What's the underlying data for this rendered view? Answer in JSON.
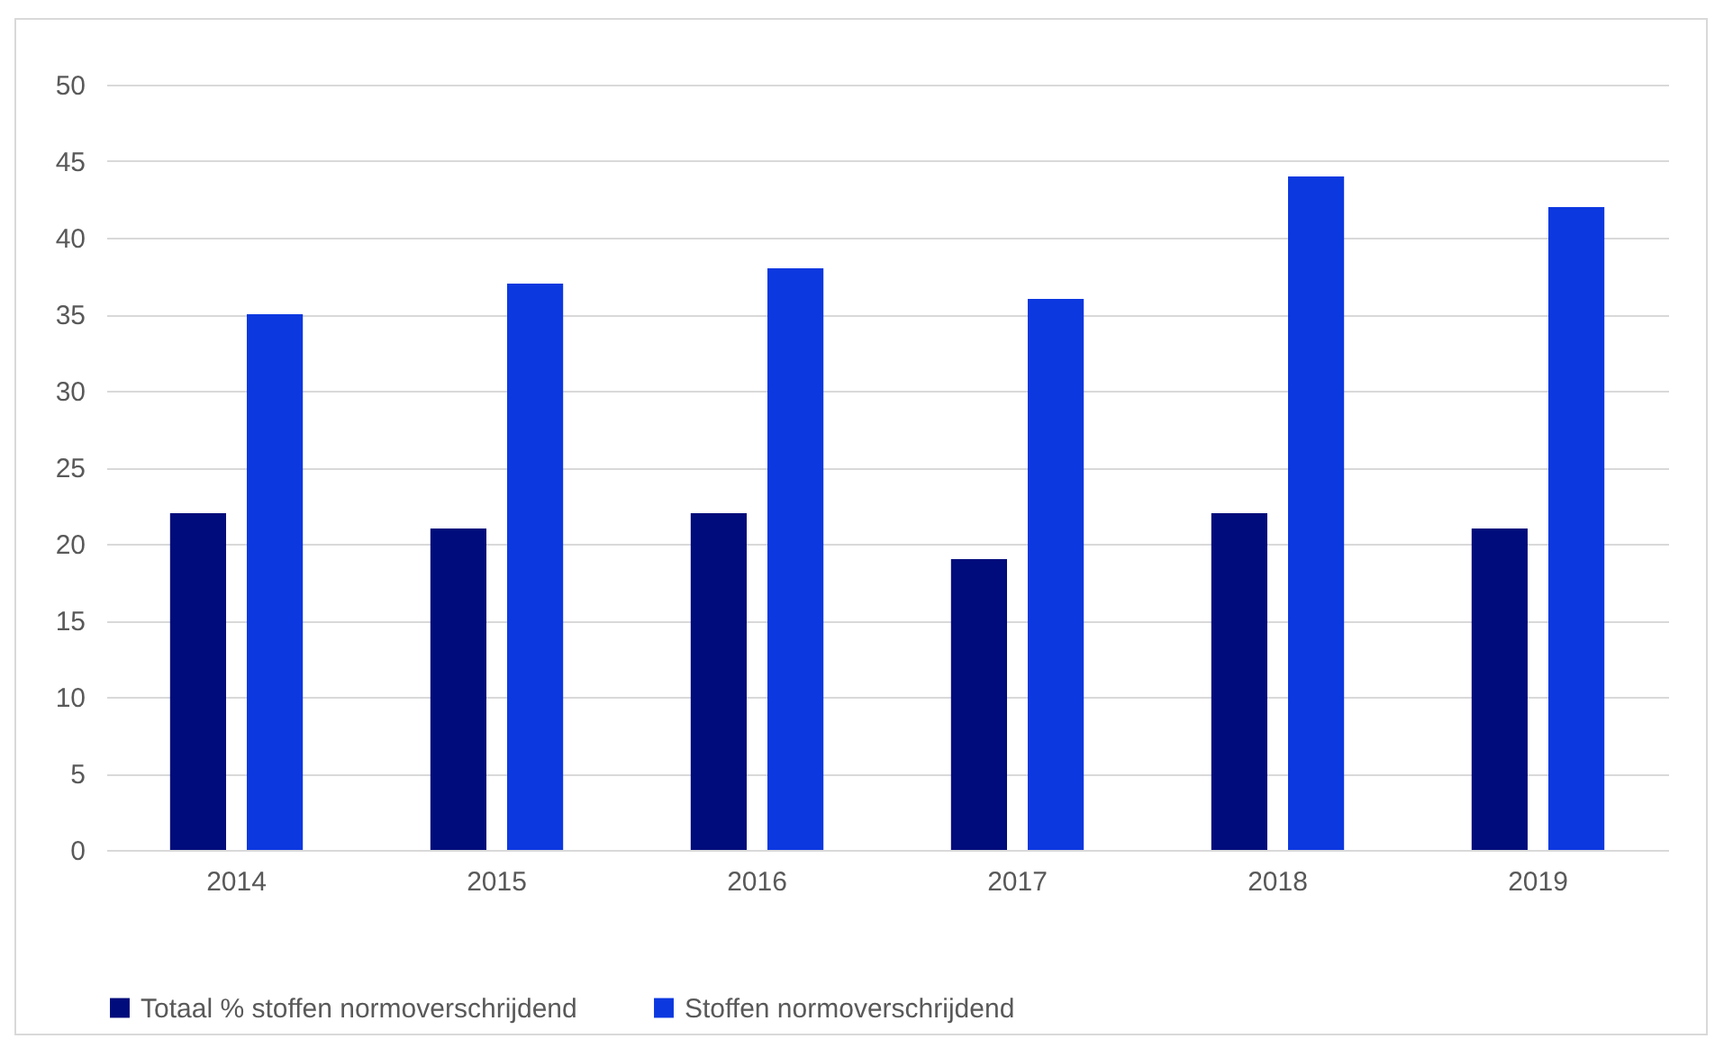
{
  "chart_data": {
    "type": "bar",
    "categories": [
      "2014",
      "2015",
      "2016",
      "2017",
      "2018",
      "2019"
    ],
    "series": [
      {
        "name": "Totaal % stoffen normoverschrijdend",
        "color": "#000c7b",
        "values": [
          22,
          21,
          22,
          19,
          22,
          21
        ]
      },
      {
        "name": "Stoffen normoverschrijdend",
        "color": "#0c38e0",
        "values": [
          35,
          37,
          38,
          36,
          44,
          42
        ]
      }
    ],
    "ylim": [
      0,
      50
    ],
    "yticks": [
      0,
      5,
      10,
      15,
      20,
      25,
      30,
      35,
      40,
      45,
      50
    ],
    "grid": "y",
    "legend": "bottom"
  }
}
